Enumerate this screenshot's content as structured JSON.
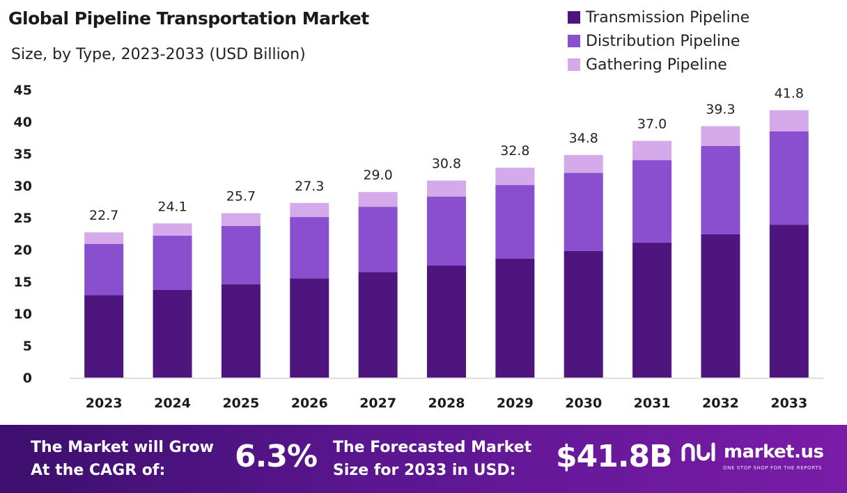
{
  "colors": {
    "transmission": "#4e157e",
    "distribution": "#8a4fcf",
    "gathering": "#d4aaeb",
    "text": "#1a1a1a",
    "axis": "#bdbdbd"
  },
  "chart_data": {
    "type": "bar",
    "stacked": true,
    "title": "Global Pipeline Transportation Market",
    "subtitle": "Size, by Type, 2023-2033 (USD Billion)",
    "categories": [
      "2023",
      "2024",
      "2025",
      "2026",
      "2027",
      "2028",
      "2029",
      "2030",
      "2031",
      "2032",
      "2033"
    ],
    "series": [
      {
        "name": "Transmission Pipeline",
        "values": [
          12.9,
          13.7,
          14.6,
          15.5,
          16.5,
          17.5,
          18.6,
          19.8,
          21.1,
          22.4,
          23.9
        ]
      },
      {
        "name": "Distribution Pipeline",
        "values": [
          8.0,
          8.5,
          9.1,
          9.6,
          10.2,
          10.8,
          11.5,
          12.2,
          12.9,
          13.8,
          14.6
        ]
      },
      {
        "name": "Gathering Pipeline",
        "values": [
          1.8,
          1.9,
          2.0,
          2.2,
          2.3,
          2.5,
          2.7,
          2.8,
          3.0,
          3.1,
          3.3
        ]
      }
    ],
    "totals": [
      "22.7",
      "24.1",
      "25.7",
      "27.3",
      "29.0",
      "30.8",
      "32.8",
      "34.8",
      "37.0",
      "39.3",
      "41.8"
    ],
    "yticks": [
      "0",
      "5",
      "10",
      "15",
      "20",
      "25",
      "30",
      "35",
      "40",
      "45"
    ],
    "ylim": [
      0,
      45
    ],
    "xlabel": "",
    "ylabel": "",
    "legend_position": "top-right"
  },
  "footer": {
    "cagr_label_line1": "The Market will Grow",
    "cagr_label_line2": "At the CAGR of:",
    "cagr_value": "6.3%",
    "forecast_label_line1": "The Forecasted Market",
    "forecast_label_line2": "Size for 2033 in USD:",
    "forecast_value": "$41.8B",
    "brand_name": "market.us",
    "brand_tagline": "ONE STOP SHOP FOR THE REPORTS"
  }
}
